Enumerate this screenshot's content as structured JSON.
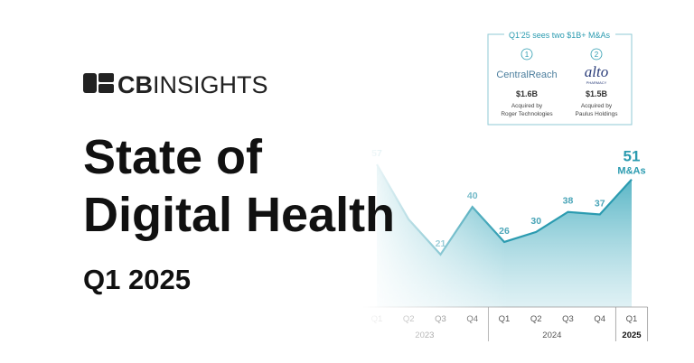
{
  "logo": {
    "bold": "CB",
    "light": "INSIGHTS"
  },
  "title_lines": [
    "State of",
    "Digital Health"
  ],
  "subtitle": "Q1 2025",
  "callout": {
    "title": "Q1'25 sees two $1B+ M&As",
    "items": [
      {
        "number": "1",
        "company": "CentralReach",
        "amount": "$1.6B",
        "note": "Acquired by",
        "acquirer": "Roger Technologies"
      },
      {
        "number": "2",
        "company": "alto",
        "company_sub": "PHARMACY",
        "amount": "$1.5B",
        "note": "Acquired by",
        "acquirer": "Paulus Holdings"
      }
    ]
  },
  "chart_data": {
    "type": "area",
    "categories": [
      "Q1",
      "Q2",
      "Q3",
      "Q4",
      "Q1",
      "Q2",
      "Q3",
      "Q4",
      "Q1"
    ],
    "x_groups": [
      {
        "label": "2023",
        "count": 4
      },
      {
        "label": "2024",
        "count": 4
      },
      {
        "label": "2025",
        "count": 1
      }
    ],
    "values": [
      57,
      35,
      21,
      40,
      26,
      30,
      38,
      37,
      51
    ],
    "value_labels": [
      "57",
      null,
      "21",
      "40",
      "26",
      "30",
      "38",
      "37",
      "51"
    ],
    "annotation": "M&As",
    "color": "#2b9bb0"
  }
}
